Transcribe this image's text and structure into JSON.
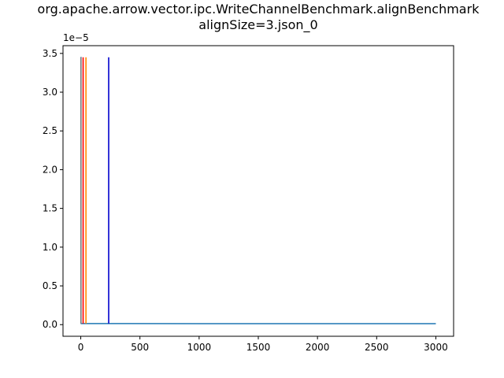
{
  "chart_data": {
    "type": "line",
    "title_lines": [
      "org.apache.arrow.vector.ipc.WriteChannelBenchmark.alignBenchmark",
      "alignSize=3.json_0"
    ],
    "xlabel": "",
    "ylabel": "",
    "y_offset_text": "1e−5",
    "xlim": [
      -150,
      3150
    ],
    "ylim": [
      -1.5e-06,
      3.6e-05
    ],
    "x_ticks": [
      0,
      500,
      1000,
      1500,
      2000,
      2500,
      3000
    ],
    "x_tick_labels": [
      "0",
      "500",
      "1000",
      "1500",
      "2000",
      "2500",
      "3000"
    ],
    "y_ticks": [
      0,
      5e-06,
      1e-05,
      1.5e-05,
      2e-05,
      2.5e-05,
      3e-05,
      3.5e-05
    ],
    "y_tick_labels": [
      "0.0",
      "0.5",
      "1.0",
      "1.5",
      "2.0",
      "2.5",
      "3.0",
      "3.5"
    ],
    "grid": false,
    "series": [
      {
        "color": "#1f77b4",
        "x": [
          0,
          1,
          1,
          2,
          3,
          400,
          1000,
          2000,
          2500,
          3000
        ],
        "y": [
          3.45e-05,
          3.45e-05,
          2e-07,
          1.6e-07,
          1.4e-07,
          1.35e-07,
          1.3e-07,
          1.3e-07,
          1.3e-07,
          1.3e-07
        ]
      }
    ],
    "markers": [
      {
        "color": "#ff8c00",
        "x": 44,
        "y_min": 1.4e-07,
        "y_max": 3.45e-05
      },
      {
        "color": "#ff0000",
        "x": 20,
        "y_min": 1.4e-07,
        "y_max": 3.45e-05
      },
      {
        "color": "#808080",
        "x": 2,
        "y_min": 1.4e-07,
        "y_max": 3.45e-05
      },
      {
        "color": "#0000cc",
        "x": 236,
        "y_min": 1.4e-07,
        "y_max": 3.45e-05
      }
    ]
  }
}
